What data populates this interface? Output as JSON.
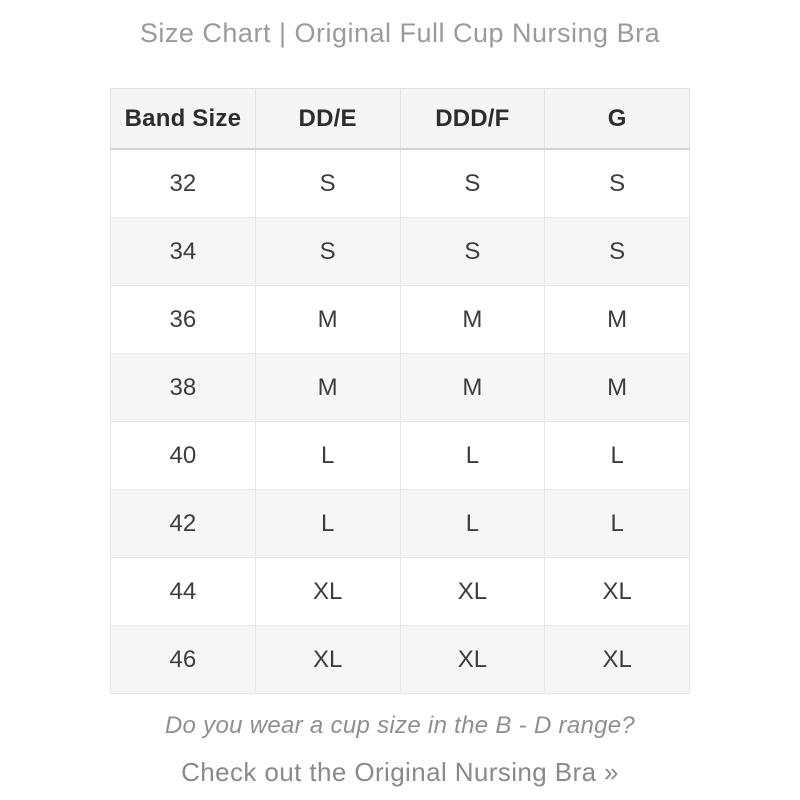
{
  "page": {
    "title": "Size Chart | Original Full Cup Nursing Bra"
  },
  "table": {
    "columns": [
      "Band Size",
      "DD/E",
      "DDD/F",
      "G"
    ],
    "rows": [
      [
        "32",
        "S",
        "S",
        "S"
      ],
      [
        "34",
        "S",
        "S",
        "S"
      ],
      [
        "36",
        "M",
        "M",
        "M"
      ],
      [
        "38",
        "M",
        "M",
        "M"
      ],
      [
        "40",
        "L",
        "L",
        "L"
      ],
      [
        "42",
        "L",
        "L",
        "L"
      ],
      [
        "44",
        "XL",
        "XL",
        "XL"
      ],
      [
        "46",
        "XL",
        "XL",
        "XL"
      ]
    ]
  },
  "footer": {
    "question": "Do you wear a cup size in the B - D range?",
    "cta_prefix": "Check out the ",
    "cta_link_text": "Original Nursing Bra",
    "cta_arrow": " »"
  },
  "colors": {
    "title_text": "#9b9b9b",
    "header_text": "#2d2d2d",
    "cell_text": "#3d3d3d",
    "header_bg": "#f5f5f5",
    "stripe_bg": "#f6f6f6",
    "border": "#e7e7e7",
    "footer_text": "#8a8a8a"
  }
}
